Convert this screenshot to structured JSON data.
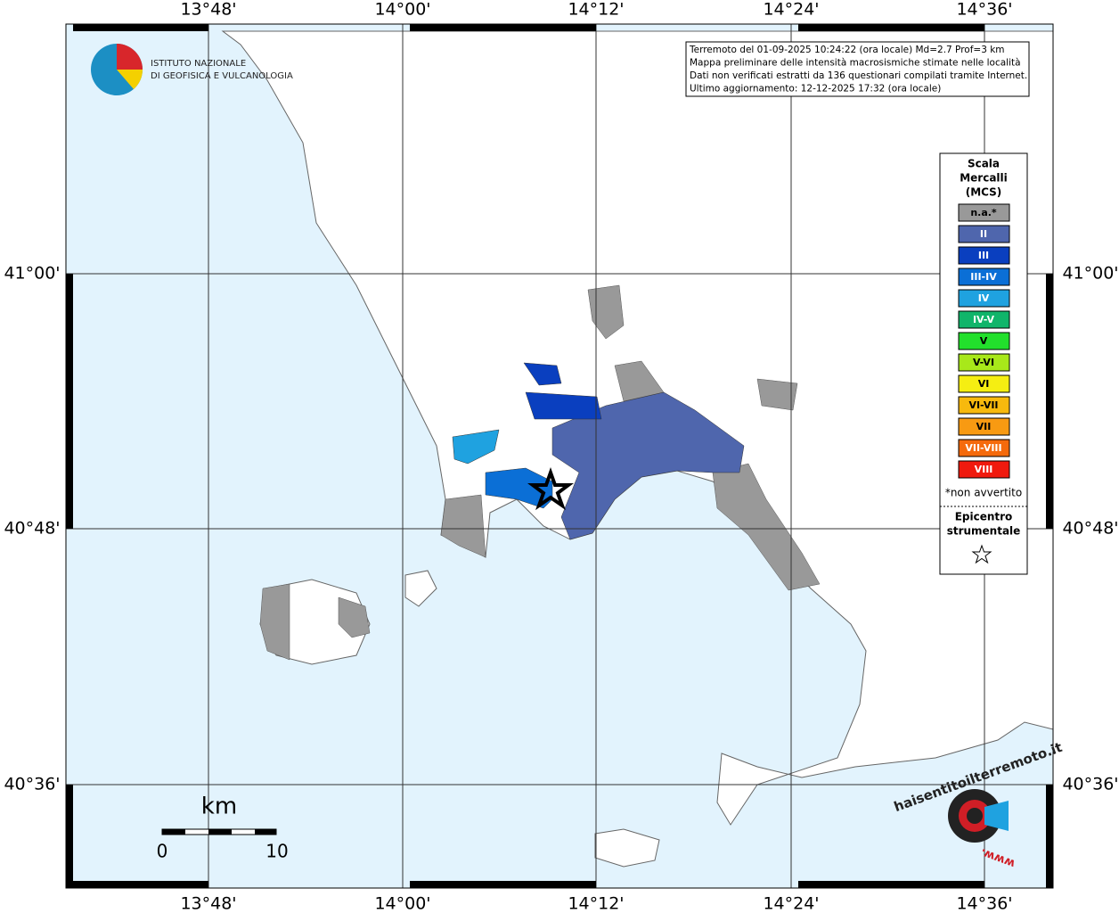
{
  "logo": {
    "lines": [
      "ISTITUTO NAZIONALE",
      "DI GEOFISICA E VULCANOLOGIA"
    ]
  },
  "info_box": {
    "lines": [
      "Terremoto del 01-09-2025 10:24:22 (ora locale) Md=2.7 Prof=3 km",
      "Mappa preliminare delle intensità macrosismiche stimate nelle località",
      "Dati non verificati estratti da 136 questionari compilati tramite Internet.",
      "Ultimo aggiornamento: 12-12-2025 17:32 (ora locale)"
    ]
  },
  "axes": {
    "lon_labels": [
      "13°48'",
      "14°00'",
      "14°12'",
      "14°24'",
      "14°36'"
    ],
    "lat_labels": [
      "41°00'",
      "40°48'",
      "40°36'"
    ]
  },
  "legend": {
    "title_lines": [
      "Scala",
      "Mercalli",
      "(MCS)"
    ],
    "items": [
      {
        "label": "n.a.*",
        "color": "#999999"
      },
      {
        "label": "II",
        "color": "#4f66ad"
      },
      {
        "label": "III",
        "color": "#0a3fbf"
      },
      {
        "label": "III-IV",
        "color": "#0b6fd6"
      },
      {
        "label": "IV",
        "color": "#1fa2e0"
      },
      {
        "label": "IV-V",
        "color": "#10b56a"
      },
      {
        "label": "V",
        "color": "#22e02c"
      },
      {
        "label": "V-VI",
        "color": "#a8e81a"
      },
      {
        "label": "VI",
        "color": "#f5ee12"
      },
      {
        "label": "VI-VII",
        "color": "#f7b90d"
      },
      {
        "label": "VII",
        "color": "#f89a12"
      },
      {
        "label": "VII-VIII",
        "color": "#f56a0c"
      },
      {
        "label": "VIII",
        "color": "#f01a0e"
      }
    ],
    "footnote": "*non avvertito",
    "epicenter_lines": [
      "Epicentro",
      "strumentale"
    ]
  },
  "scale_bar": {
    "unit": "km",
    "ticks": [
      0,
      10
    ]
  },
  "watermark": {
    "text": "haisentitoilterremoto.it",
    "prefix": "www."
  }
}
